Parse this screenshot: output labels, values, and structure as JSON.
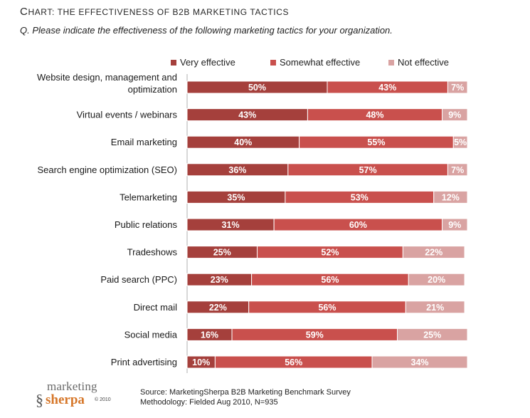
{
  "header": {
    "title_prefix": "C",
    "title_rest": "hart: ",
    "title_main": "The effectiveness of B2B marketing tactics",
    "question": "Q. Please indicate the effectiveness of the following marketing tactics for your organization."
  },
  "footer": {
    "source": "Source: MarketingSherpa B2B Marketing Benchmark Survey",
    "methodology": "Methodology: Fielded Aug 2010, N=935"
  },
  "logo": {
    "line1": "marketing",
    "line2": "sherpa",
    "line3": "© 2010",
    "mark": "§"
  },
  "colors": {
    "very": "#a5403c",
    "somewhat": "#c9504d",
    "not": "#d9a3a2"
  },
  "chart_data": {
    "type": "bar",
    "orientation": "horizontal",
    "stacked": true,
    "title": "Chart: The effectiveness of B2B marketing tactics",
    "subtitle": "Q. Please indicate the effectiveness of the following marketing tactics for your organization.",
    "xlim": [
      0,
      100
    ],
    "grid": false,
    "legend_position": "top",
    "categories": [
      "Website design, management and optimization",
      "Virtual events / webinars",
      "Email marketing",
      "Search engine optimization (SEO)",
      "Telemarketing",
      "Public relations",
      "Tradeshows",
      "Paid search (PPC)",
      "Direct mail",
      "Social media",
      "Print advertising"
    ],
    "category_lines": [
      [
        "Website design, management and",
        "optimization"
      ],
      [
        "Virtual events / webinars"
      ],
      [
        "Email marketing"
      ],
      [
        "Search engine optimization (SEO)"
      ],
      [
        "Telemarketing"
      ],
      [
        "Public relations"
      ],
      [
        "Tradeshows"
      ],
      [
        "Paid search (PPC)"
      ],
      [
        "Direct mail"
      ],
      [
        "Social media"
      ],
      [
        "Print advertising"
      ]
    ],
    "series": [
      {
        "name": "Very effective",
        "key": "very",
        "values": [
          50,
          43,
          40,
          36,
          35,
          31,
          25,
          23,
          22,
          16,
          10
        ]
      },
      {
        "name": "Somewhat effective",
        "key": "somewhat",
        "values": [
          43,
          48,
          55,
          57,
          53,
          60,
          52,
          56,
          56,
          59,
          56
        ]
      },
      {
        "name": "Not effective",
        "key": "not",
        "values": [
          7,
          9,
          5,
          7,
          12,
          9,
          22,
          20,
          21,
          25,
          34
        ]
      }
    ],
    "value_suffix": "%"
  }
}
